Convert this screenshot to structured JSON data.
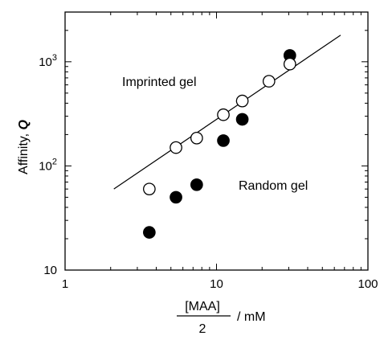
{
  "chart_data": {
    "type": "scatter",
    "x_scale": "log",
    "y_scale": "log",
    "xlim": [
      1,
      100
    ],
    "ylim": [
      10,
      3000
    ],
    "xlabel": {
      "numerator": "[MAA]",
      "denominator": "2",
      "unit": "/ mM"
    },
    "ylabel": {
      "text": "Affinity, ",
      "symbol": "Q"
    },
    "x_ticks": [
      {
        "value": 1,
        "label": "1"
      },
      {
        "value": 10,
        "label": "10"
      },
      {
        "value": 100,
        "label": "100"
      }
    ],
    "y_ticks": [
      {
        "value": 10,
        "label": "10"
      },
      {
        "value": 100,
        "label": "10",
        "exp": "2"
      },
      {
        "value": 1000,
        "label": "10",
        "exp": "3"
      }
    ],
    "grid": false,
    "series": [
      {
        "marker": "open-circle",
        "points": [
          {
            "x": 3.6,
            "y": 60
          },
          {
            "x": 5.4,
            "y": 150
          },
          {
            "x": 7.4,
            "y": 185
          },
          {
            "x": 11.1,
            "y": 310
          },
          {
            "x": 14.8,
            "y": 420
          },
          {
            "x": 22.2,
            "y": 650
          },
          {
            "x": 30.5,
            "y": 950
          }
        ]
      },
      {
        "marker": "filled-circle",
        "points": [
          {
            "x": 3.6,
            "y": 23
          },
          {
            "x": 5.4,
            "y": 50
          },
          {
            "x": 7.4,
            "y": 66
          },
          {
            "x": 11.1,
            "y": 175
          },
          {
            "x": 14.8,
            "y": 280
          },
          {
            "x": 30.5,
            "y": 1150
          }
        ]
      }
    ],
    "fit_line": {
      "x": [
        2.1,
        66
      ],
      "y": [
        60,
        1800
      ]
    },
    "annotations": [
      {
        "text": "Imprinted gel"
      },
      {
        "text": "Random gel"
      }
    ]
  }
}
